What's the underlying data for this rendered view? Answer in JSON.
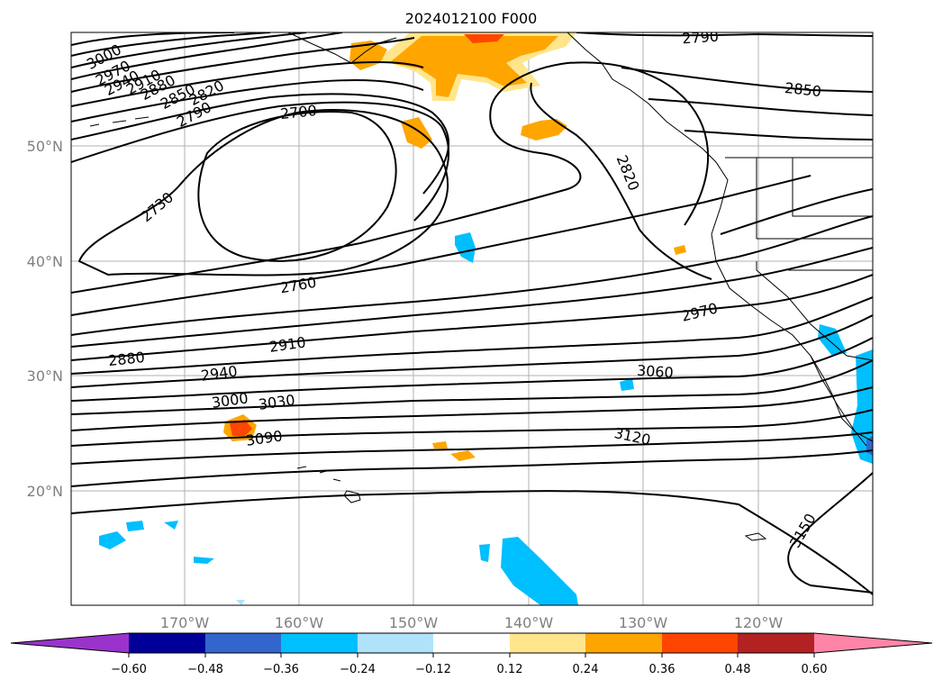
{
  "title": "2024012100 F000",
  "map": {
    "lon_labels": [
      "170°W",
      "160°W",
      "150°W",
      "140°W",
      "130°W",
      "120°W"
    ],
    "lat_labels": [
      "50°N",
      "40°N",
      "30°N",
      "20°N"
    ],
    "contour_labels": [
      "3000",
      "2970",
      "2940",
      "2910",
      "2880",
      "2850",
      "2820",
      "2790",
      "2700",
      "2730",
      "2760",
      "2820",
      "2790",
      "2850",
      "2970",
      "2880",
      "2910",
      "2940",
      "3000",
      "3030",
      "3060",
      "3090",
      "3120",
      "3150"
    ],
    "gridlines": true
  },
  "colorbar": {
    "ticks": [
      "−0.60",
      "−0.48",
      "−0.36",
      "−0.24",
      "−0.12",
      "0.12",
      "0.24",
      "0.36",
      "0.48",
      "0.60"
    ],
    "colors": [
      "#9933cc",
      "#000099",
      "#3366cc",
      "#00bfff",
      "#aee3fa",
      "#ffffff",
      "#ffe68c",
      "#ffa500",
      "#ff4500",
      "#b22222",
      "#ff85a8"
    ],
    "extend": "both"
  }
}
